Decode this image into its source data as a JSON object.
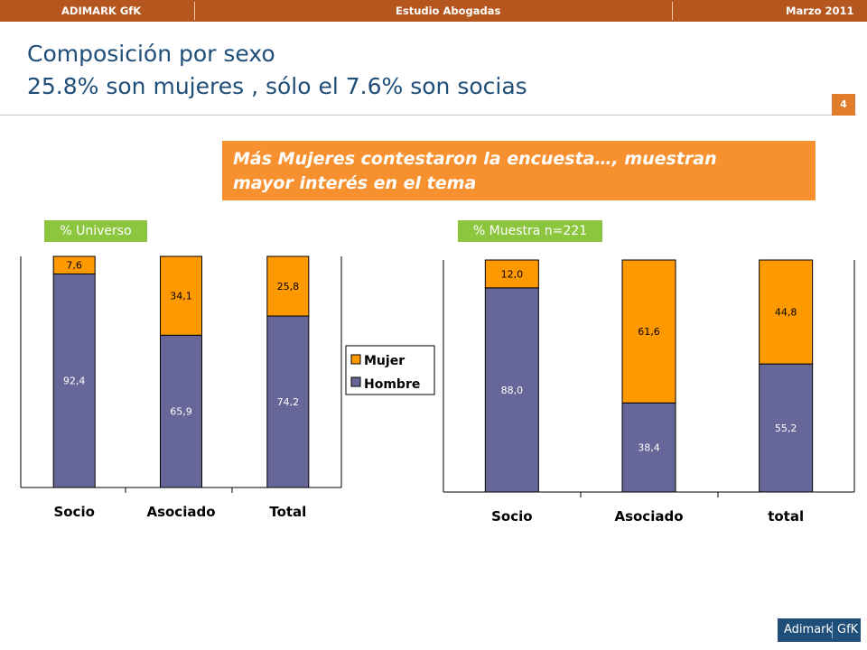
{
  "header": {
    "left": "ADIMARK GfK",
    "center": "Estudio Abogadas",
    "right": "Marzo 2011"
  },
  "title": {
    "line1": "Composición por sexo",
    "line2": "25.8% son mujeres , sólo el 7.6% son socias"
  },
  "page_number": "4",
  "callout": {
    "line1": "Más Mujeres contestaron la encuesta…, muestran",
    "line2": "mayor interés en el tema"
  },
  "legend": [
    "Mujer",
    "Hombre"
  ],
  "colors": {
    "mujer": "#ff9900",
    "hombre": "#666699",
    "accent": "#f7912f",
    "chip": "#8cc63f",
    "title": "#1f4e79",
    "bar": "#b5561f"
  },
  "logo": {
    "left": "Adimark",
    "right": "GfK"
  },
  "chart_data": [
    {
      "type": "bar",
      "stacked": true,
      "title": "% Universo",
      "categories": [
        "Socio",
        "Asociado",
        "Total"
      ],
      "series": [
        {
          "name": "Hombre",
          "values": [
            92.4,
            65.9,
            74.2
          ],
          "labels": [
            "92,4",
            "65,9",
            "74,2"
          ]
        },
        {
          "name": "Mujer",
          "values": [
            7.6,
            34.1,
            25.8
          ],
          "labels": [
            "7,6",
            "34,1",
            "25,8"
          ]
        }
      ],
      "ylim": [
        0,
        100
      ],
      "grid": false
    },
    {
      "type": "bar",
      "stacked": true,
      "title": "% Muestra n=221",
      "categories": [
        "Socio",
        "Asociado",
        "total"
      ],
      "series": [
        {
          "name": "Hombre",
          "values": [
            88.0,
            38.4,
            55.2
          ],
          "labels": [
            "88,0",
            "38,4",
            "55,2"
          ]
        },
        {
          "name": "Mujer",
          "values": [
            12.0,
            61.6,
            44.8
          ],
          "labels": [
            "12,0",
            "61,6",
            "44,8"
          ]
        }
      ],
      "ylim": [
        0,
        100
      ],
      "grid": false
    }
  ]
}
